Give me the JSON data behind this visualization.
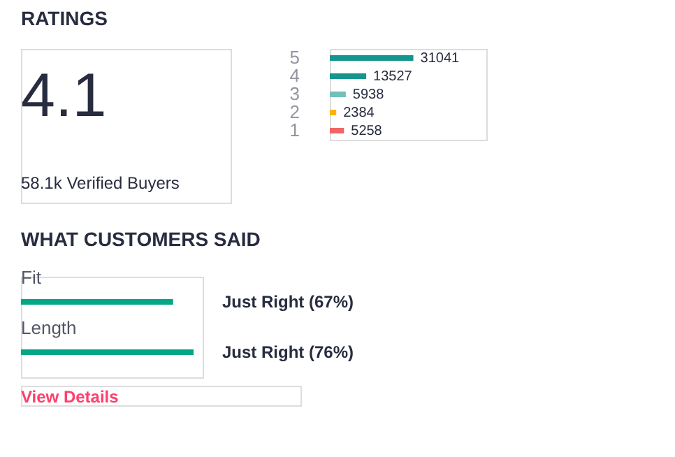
{
  "chart_data": [
    {
      "type": "other",
      "title": "RATINGS",
      "annotations": [
        "4.1",
        "58.1k Verified Buyers"
      ]
    },
    {
      "type": "bar",
      "orientation": "horizontal",
      "categories": [
        "5",
        "4",
        "3",
        "2",
        "1"
      ],
      "values": [
        31041,
        13527,
        5938,
        2384,
        5258
      ],
      "colors": [
        "#14958f",
        "#14958f",
        "#72bfbc",
        "#fcb301",
        "#f16565"
      ],
      "data_labels": true
    },
    {
      "type": "bar",
      "orientation": "horizontal",
      "title": "WHAT CUSTOMERS SAID",
      "categories": [
        "Fit",
        "Length"
      ],
      "values": [
        67,
        76
      ],
      "color": "#03a685",
      "value_labels": [
        "Just Right (67%)",
        "Just Right (76%)"
      ],
      "annotations": [
        "View Details"
      ]
    }
  ]
}
